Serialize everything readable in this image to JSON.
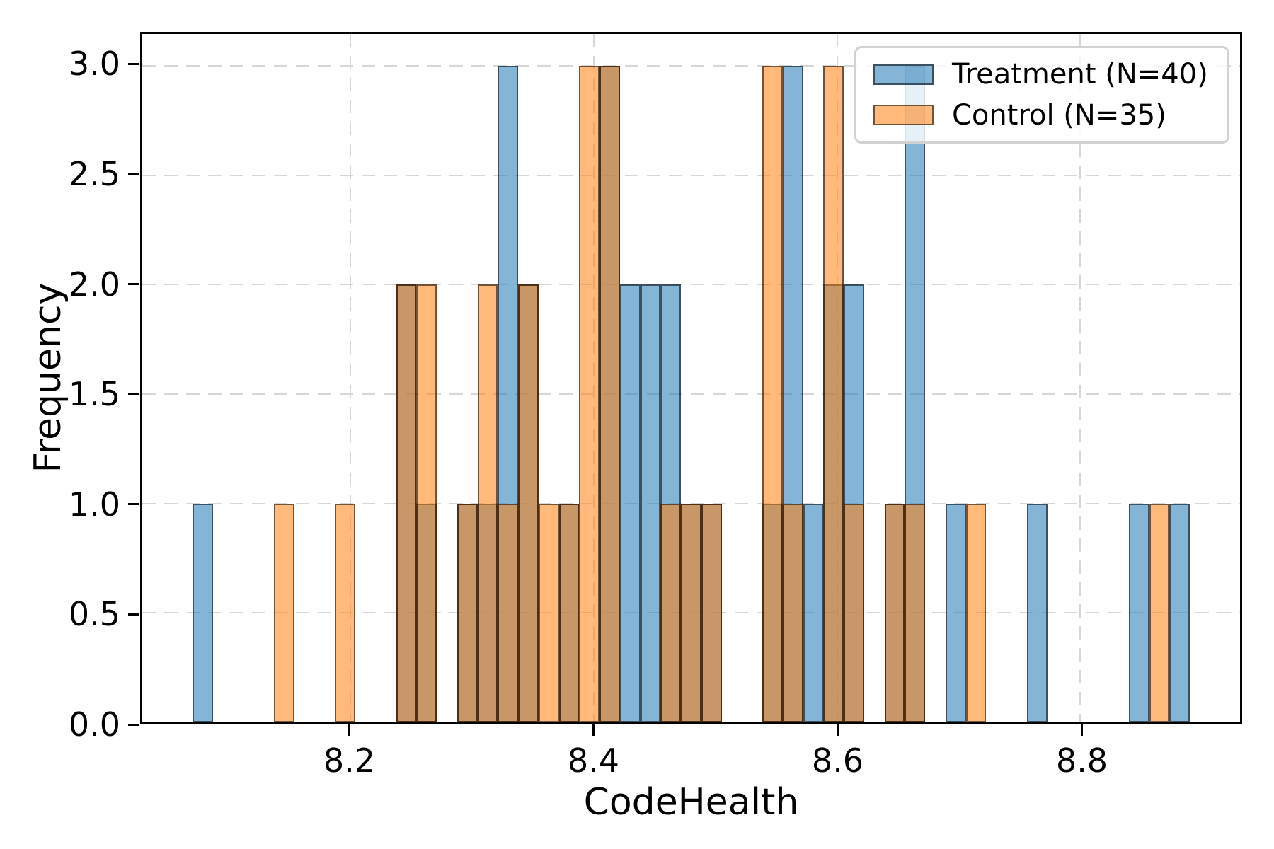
{
  "chart_data": {
    "type": "histogram",
    "title": "",
    "xlabel": "CodeHealth",
    "ylabel": "Frequency",
    "xlim": [
      8.0287,
      8.9313
    ],
    "ylim": [
      0,
      3.146
    ],
    "xticks": {
      "values": [
        8.2,
        8.4,
        8.6,
        8.8
      ],
      "labels": [
        "8.2",
        "8.4",
        "8.6",
        "8.8"
      ]
    },
    "yticks": {
      "values": [
        0,
        0.5,
        1,
        1.5,
        2,
        2.5,
        3
      ],
      "labels": [
        "0.0",
        "0.5",
        "1.0",
        "1.5",
        "2.0",
        "2.5",
        "3.0"
      ]
    },
    "grid": {
      "visible": true,
      "style": "dashed"
    },
    "bins": {
      "start": 8.07,
      "width": 0.016735,
      "count": 49
    },
    "series": [
      {
        "name": "Treatment (N=40)",
        "n": 40,
        "color": "#1f77b4",
        "alpha": 0.55,
        "counts": [
          1,
          0,
          0,
          0,
          0,
          0,
          0,
          0,
          0,
          0,
          2,
          1,
          0,
          1,
          1,
          3,
          2,
          0,
          1,
          0,
          3,
          2,
          2,
          2,
          1,
          1,
          0,
          0,
          1,
          3,
          1,
          2,
          2,
          0,
          1,
          3,
          0,
          1,
          0,
          0,
          0,
          1,
          0,
          0,
          0,
          0,
          1,
          0,
          1
        ]
      },
      {
        "name": "Control (N=35)",
        "n": 35,
        "color": "#ff7f0e",
        "alpha": 0.55,
        "counts": [
          0,
          0,
          0,
          0,
          1,
          0,
          0,
          1,
          0,
          0,
          2,
          2,
          0,
          1,
          2,
          1,
          2,
          1,
          1,
          3,
          3,
          0,
          0,
          1,
          1,
          1,
          0,
          0,
          3,
          1,
          0,
          3,
          1,
          0,
          1,
          1,
          0,
          0,
          1,
          0,
          0,
          0,
          0,
          0,
          0,
          0,
          0,
          1,
          0
        ]
      }
    ],
    "legend": {
      "position": "upper right",
      "entries": [
        "Treatment (N=40)",
        "Control (N=35)"
      ]
    }
  },
  "style": {
    "bar_edge": "rgba(0,0,0,0.55)",
    "grid_color": "#d7d7d7",
    "spine_color": "#000000",
    "legend_border": "#d2d2d2",
    "legend_bg": "rgba(255,255,255,0.8)",
    "background": "#ffffff",
    "text_color": "#000000"
  }
}
